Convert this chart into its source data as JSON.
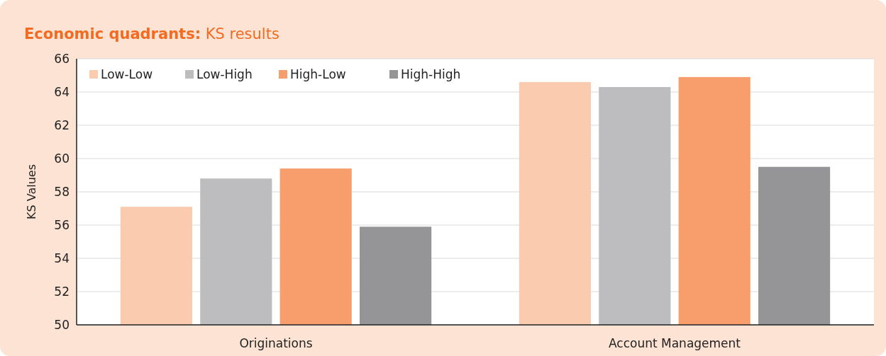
{
  "chart_data": {
    "type": "bar",
    "title": "Economic quadrants:",
    "subtitle": "KS results",
    "ylabel": "KS Values",
    "categories": [
      "Originations",
      "Account Management"
    ],
    "series": [
      {
        "name": "Low-Low",
        "color": "#fbcbaf",
        "values": [
          57.1,
          64.6
        ]
      },
      {
        "name": "Low-High",
        "color": "#bdbdbf",
        "values": [
          58.8,
          64.3
        ]
      },
      {
        "name": "High-Low",
        "color": "#f79e6c",
        "values": [
          59.4,
          64.9
        ]
      },
      {
        "name": "High-High",
        "color": "#959598",
        "values": [
          55.9,
          59.5
        ]
      }
    ],
    "ylim": [
      50,
      66
    ],
    "yticks": [
      50,
      52,
      54,
      56,
      58,
      60,
      62,
      64,
      66
    ],
    "grid": "y",
    "legend": "top left"
  }
}
